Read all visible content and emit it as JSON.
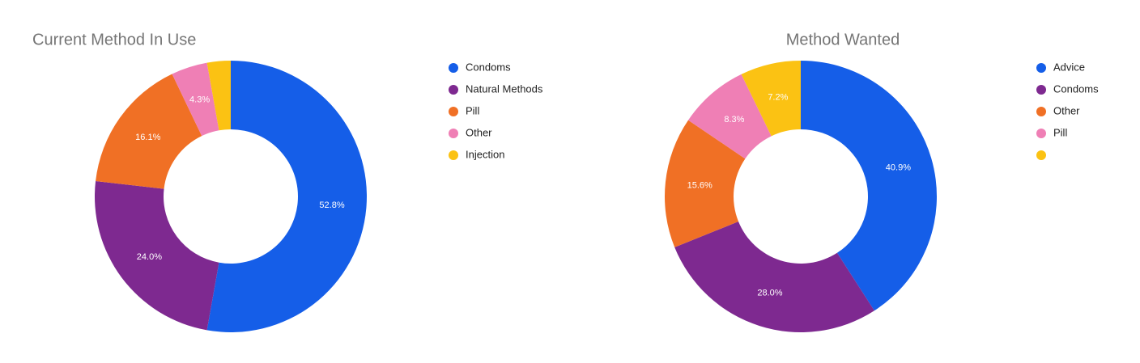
{
  "chart_data": [
    {
      "type": "donut",
      "title": "Current Method In Use",
      "categories": [
        "Condoms",
        "Natural Methods",
        "Pill",
        "Other",
        "Injection"
      ],
      "values": [
        52.8,
        24.0,
        16.1,
        4.3,
        2.8
      ],
      "value_labels": [
        "52.8%",
        "24.0%",
        "16.1%",
        "4.3%",
        null
      ],
      "colors": [
        "#155ee8",
        "#7e2990",
        "#f07025",
        "#ef7fb5",
        "#fbc213"
      ]
    },
    {
      "type": "donut",
      "title": "Method Wanted",
      "categories": [
        "Advice",
        "Condoms",
        "Other",
        "Pill",
        null
      ],
      "values": [
        40.9,
        28.0,
        15.6,
        8.3,
        7.2
      ],
      "value_labels": [
        "40.9%",
        "28.0%",
        "15.6%",
        "8.3%",
        "7.2%"
      ],
      "colors": [
        "#155ee8",
        "#7e2990",
        "#f07025",
        "#ef7fb5",
        "#fbc213"
      ]
    }
  ]
}
